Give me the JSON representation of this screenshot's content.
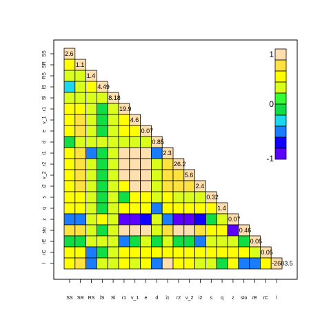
{
  "chart_data": {
    "type": "heatmap",
    "variables": [
      "SS",
      "SR",
      "RS",
      "lS",
      "Sl",
      "r1",
      "v_1",
      "e",
      "d",
      "i1",
      "r2",
      "v_2",
      "i2",
      "s",
      "q",
      "z",
      "sto",
      "rE",
      "rC",
      "l"
    ],
    "diagonal_labels": [
      "2.6",
      "1.1",
      "1.4",
      "4.49",
      "8.18",
      "19.9",
      "4.6",
      "0.07",
      "0.85",
      "2.3",
      "26.2",
      "5.6",
      "2.4",
      "0.32",
      "1.4",
      "0.07",
      "0.46",
      "0.05",
      "0.05",
      "-2603.5"
    ],
    "lower_triangle": [
      [],
      [
        0.6
      ],
      [
        0.3,
        0.4
      ],
      [
        -0.2,
        0.4,
        0.6
      ],
      [
        0.4,
        0.4,
        0.3,
        0.3
      ],
      [
        0.6,
        0.6,
        0.3,
        -0.1,
        0.3
      ],
      [
        0.6,
        0.7,
        0.3,
        -0.1,
        0.3,
        0.5
      ],
      [
        0.6,
        0.7,
        0.3,
        -0.1,
        0.3,
        0.5,
        0.6
      ],
      [
        -0.1,
        0.4,
        0.3,
        0.4,
        0.3,
        0.4,
        0.4,
        0.4
      ],
      [
        0.6,
        0.7,
        -0.4,
        -0.1,
        0.3,
        0.9,
        0.8,
        0.8,
        -0.4
      ],
      [
        0.6,
        0.7,
        0.3,
        -0.1,
        0.3,
        0.9,
        0.9,
        0.8,
        0.4,
        0.7
      ],
      [
        0.6,
        0.7,
        0.3,
        -0.1,
        0.3,
        0.8,
        0.9,
        0.9,
        0.4,
        0.7,
        0.7
      ],
      [
        0.6,
        0.7,
        0.3,
        -0.1,
        0.3,
        0.5,
        0.9,
        0.9,
        0.3,
        0.7,
        0.7,
        0.7
      ],
      [
        0.5,
        0.6,
        0.3,
        -0.1,
        0.3,
        -0.1,
        0.6,
        0.5,
        0.4,
        0.5,
        0.3,
        0.3,
        0.4
      ],
      [
        0.5,
        0.5,
        0.3,
        -0.1,
        0.3,
        0.5,
        0.5,
        0.5,
        -0.4,
        0.5,
        0.5,
        0.5,
        0.5,
        0.5
      ],
      [
        -0.4,
        -0.4,
        0.3,
        0.5,
        0.3,
        -0.9,
        -0.9,
        -0.7,
        0.4,
        -0.4,
        -0.8,
        -0.8,
        -0.7,
        -0.1,
        0.4
      ],
      [
        0.7,
        0.7,
        0.3,
        -0.1,
        0.3,
        0.9,
        0.9,
        0.8,
        0.4,
        0.7,
        0.8,
        0.8,
        0.7,
        0.5,
        0.5,
        -0.9
      ],
      [
        -0.1,
        -0.1,
        0.3,
        0.4,
        0.3,
        -0.4,
        -0.1,
        0.3,
        -0.1,
        0.3,
        -0.1,
        -0.1,
        -0.4,
        0.3,
        0.3,
        0.4,
        -0.1
      ],
      [
        0.5,
        0.5,
        -0.4,
        -0.1,
        0.3,
        0.5,
        0.5,
        0.5,
        0.5,
        0.5,
        0.5,
        0.5,
        0.5,
        0.5,
        0.5,
        0.5,
        0.5,
        0.4
      ],
      [
        0.6,
        0.7,
        -0.4,
        0.4,
        0.3,
        0.5,
        0.3,
        0.5,
        -0.4,
        0.9,
        0.5,
        0.5,
        0.4,
        0.4,
        -0.1,
        0.5,
        -0.4,
        -0.4,
        0.5
      ]
    ],
    "color_scale": {
      "min": -1,
      "max": 1,
      "tick_labels": [
        "1",
        "0",
        "-1"
      ],
      "colors_top_to_bottom": [
        "#ffdfae",
        "#ffe240",
        "#ffff00",
        "#d9ff1a",
        "#33ff33",
        "#11dd44",
        "#19d8f0",
        "#1a7dff",
        "#0f00ff",
        "#5a00ff"
      ]
    },
    "legend_position": "top-right",
    "grid": false
  }
}
